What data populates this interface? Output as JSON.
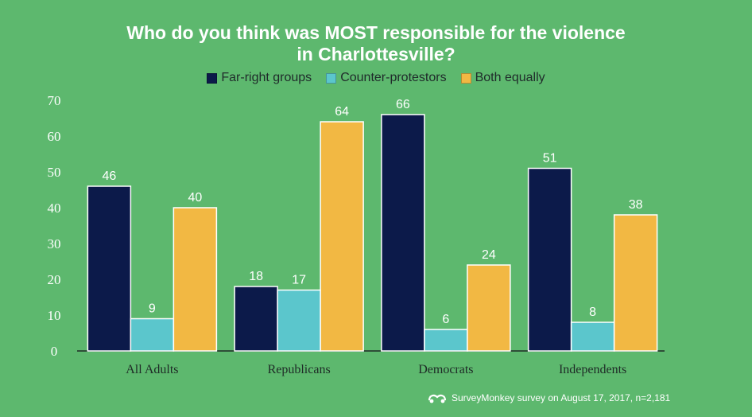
{
  "chart_data": {
    "type": "bar",
    "title_line1": "Who do you think was MOST responsible for the violence",
    "title_line2": "in Charlottesville?",
    "categories": [
      "All Adults",
      "Republicans",
      "Democrats",
      "Independents"
    ],
    "series": [
      {
        "name": "Far-right groups",
        "color": "#0c1a4a",
        "values": [
          46,
          18,
          66,
          51
        ]
      },
      {
        "name": "Counter-protestors",
        "color": "#5bc6cc",
        "values": [
          9,
          17,
          6,
          8
        ]
      },
      {
        "name": "Both equally",
        "color": "#f2b843",
        "values": [
          40,
          64,
          24,
          38
        ]
      }
    ],
    "ylim": [
      0,
      70
    ],
    "yticks": [
      0,
      10,
      20,
      30,
      40,
      50,
      60,
      70
    ],
    "grid": false,
    "legend_position": "top-center"
  },
  "footer": {
    "icon": "surveymonkey-logo-icon",
    "text": "SurveyMonkey survey on August 17, 2017, n=2,181"
  }
}
